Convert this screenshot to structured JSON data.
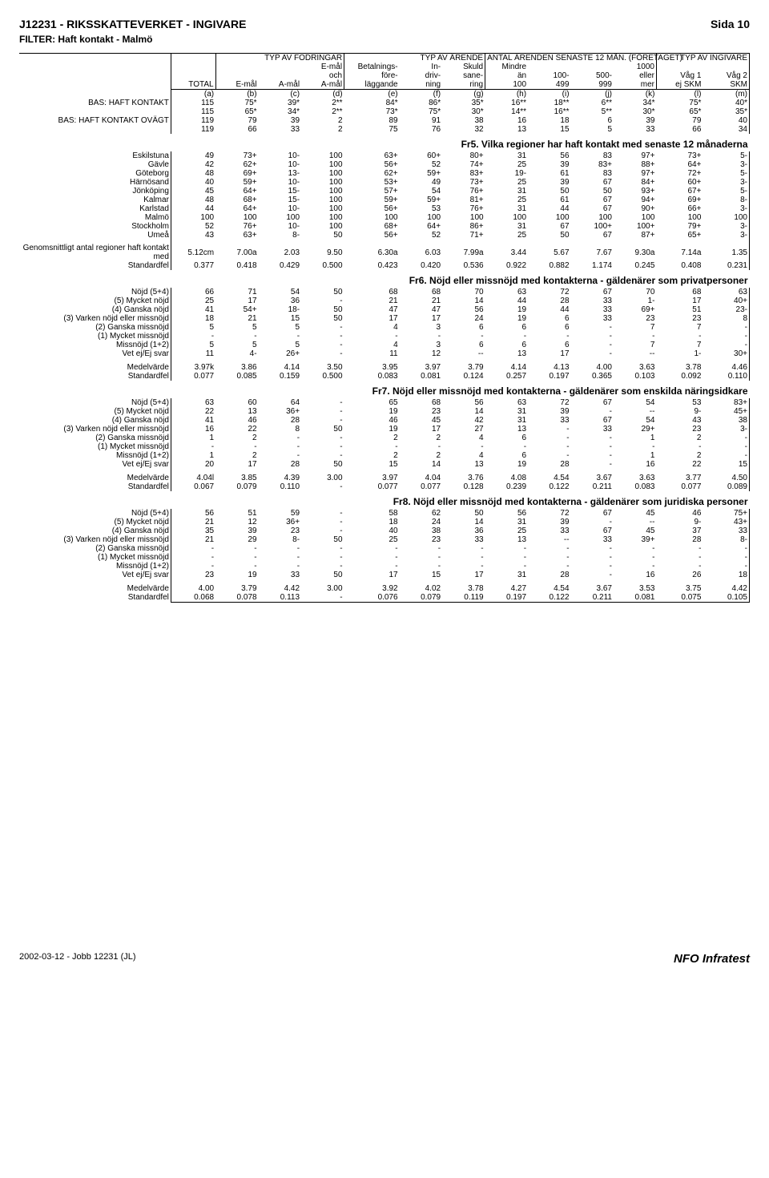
{
  "title": "J12231 - RIKSSKATTEVERKET - INGIVARE",
  "page_label": "Sida 10",
  "filter": "FILTER: Haft kontakt - Malmö",
  "footer_left": "2002-03-12 - Jobb 12231 (JL)",
  "footer_right": "NFO Infratest",
  "group_headers": [
    "TYP AV FODRINGAR",
    "TYP AV ÄRENDE",
    "ANTAL ÄRENDEN SENASTE 12 MÅN. (FÖRETAGET)",
    "TYP AV INGIVARE"
  ],
  "sub_headers_top": [
    "",
    "",
    "",
    "E-mål",
    "Betalnings-",
    "In-",
    "Skuld",
    "Mindre",
    "",
    "",
    "1000",
    "",
    ""
  ],
  "sub_headers_mid": [
    "",
    "",
    "",
    "och",
    "före-",
    "driv-",
    "sane-",
    "än",
    "100-",
    "500-",
    "eller",
    "Våg 1",
    "Våg 2"
  ],
  "sub_headers_bottom": [
    "TOTAL",
    "E-mål",
    "A-mål",
    "A-mål",
    "läggande",
    "ning",
    "ring",
    "100",
    "499",
    "999",
    "mer",
    "ej SKM",
    "SKM"
  ],
  "col_codes": [
    "(a)",
    "(b)",
    "(c)",
    "(d)",
    "(e)",
    "(f)",
    "(g)",
    "(h)",
    "(i)",
    "(j)",
    "(k)",
    "(l)",
    "(m)"
  ],
  "base_rows": [
    {
      "label": "BAS: HAFT KONTAKT",
      "cells": [
        "115",
        "75*",
        "39*",
        "2**",
        "84*",
        "86*",
        "35*",
        "16**",
        "18**",
        "6**",
        "34*",
        "75*",
        "40*"
      ]
    },
    {
      "label": "",
      "cells": [
        "115",
        "65*",
        "34*",
        "2**",
        "73*",
        "75*",
        "30*",
        "14**",
        "16**",
        "5**",
        "30*",
        "65*",
        "35*"
      ]
    },
    {
      "label": "BAS: HAFT KONTAKT OVÄGT",
      "cells": [
        "119",
        "79",
        "39",
        "2",
        "89",
        "91",
        "38",
        "16",
        "18",
        "6",
        "39",
        "79",
        "40"
      ]
    },
    {
      "label": "",
      "cells": [
        "119",
        "66",
        "33",
        "2",
        "75",
        "76",
        "32",
        "13",
        "15",
        "5",
        "33",
        "66",
        "34"
      ]
    }
  ],
  "fr5": {
    "title": "Fr5. Vilka regioner har haft kontakt med senaste 12 månaderna",
    "rows": [
      {
        "label": "Eskilstuna",
        "cells": [
          "49",
          "73+",
          "10-",
          "100",
          "63+",
          "60+",
          "80+",
          "31",
          "56",
          "83",
          "97+",
          "73+",
          "5-"
        ]
      },
      {
        "label": "Gävle",
        "cells": [
          "42",
          "62+",
          "10-",
          "100",
          "56+",
          "52",
          "74+",
          "25",
          "39",
          "83+",
          "88+",
          "64+",
          "3-"
        ]
      },
      {
        "label": "Göteborg",
        "cells": [
          "48",
          "69+",
          "13-",
          "100",
          "62+",
          "59+",
          "83+",
          "19-",
          "61",
          "83",
          "97+",
          "72+",
          "5-"
        ]
      },
      {
        "label": "Härnösand",
        "cells": [
          "40",
          "59+",
          "10-",
          "100",
          "53+",
          "49",
          "73+",
          "25",
          "39",
          "67",
          "84+",
          "60+",
          "3-"
        ]
      },
      {
        "label": "Jönköping",
        "cells": [
          "45",
          "64+",
          "15-",
          "100",
          "57+",
          "54",
          "76+",
          "31",
          "50",
          "50",
          "93+",
          "67+",
          "5-"
        ]
      },
      {
        "label": "Kalmar",
        "cells": [
          "48",
          "68+",
          "15-",
          "100",
          "59+",
          "59+",
          "81+",
          "25",
          "61",
          "67",
          "94+",
          "69+",
          "8-"
        ]
      },
      {
        "label": "Karlstad",
        "cells": [
          "44",
          "64+",
          "10-",
          "100",
          "56+",
          "53",
          "76+",
          "31",
          "44",
          "67",
          "90+",
          "66+",
          "3-"
        ]
      },
      {
        "label": "Malmö",
        "cells": [
          "100",
          "100",
          "100",
          "100",
          "100",
          "100",
          "100",
          "100",
          "100",
          "100",
          "100",
          "100",
          "100"
        ]
      },
      {
        "label": "Stockholm",
        "cells": [
          "52",
          "76+",
          "10-",
          "100",
          "68+",
          "64+",
          "86+",
          "31",
          "67",
          "100+",
          "100+",
          "79+",
          "3-"
        ]
      },
      {
        "label": "Umeå",
        "cells": [
          "43",
          "63+",
          "8-",
          "50",
          "56+",
          "52",
          "71+",
          "25",
          "50",
          "67",
          "87+",
          "65+",
          "3-"
        ]
      }
    ],
    "summary": [
      {
        "label": "Genomsnittligt antal regioner haft kontakt med",
        "cells": [
          "5.12cm",
          "7.00a",
          "2.03",
          "9.50",
          "6.30a",
          "6.03",
          "7.99a",
          "3.44",
          "5.67",
          "7.67",
          "9.30a",
          "7.14a",
          "1.35"
        ]
      },
      {
        "label": "Standardfel",
        "cells": [
          "0.377",
          "0.418",
          "0.429",
          "0.500",
          "0.423",
          "0.420",
          "0.536",
          "0.922",
          "0.882",
          "1.174",
          "0.245",
          "0.408",
          "0.231"
        ]
      }
    ]
  },
  "fr6": {
    "title": "Fr6. Nöjd eller missnöjd med kontakterna - gäldenärer som privatpersoner",
    "rows": [
      {
        "label": "Nöjd (5+4)",
        "cells": [
          "66",
          "71",
          "54",
          "50",
          "68",
          "68",
          "70",
          "63",
          "72",
          "67",
          "70",
          "68",
          "63"
        ]
      },
      {
        "label": "(5) Mycket nöjd",
        "cells": [
          "25",
          "17",
          "36",
          "-",
          "21",
          "21",
          "14",
          "44",
          "28",
          "33",
          "1-",
          "17",
          "40+"
        ]
      },
      {
        "label": "(4) Ganska nöjd",
        "cells": [
          "41",
          "54+",
          "18-",
          "50",
          "47",
          "47",
          "56",
          "19",
          "44",
          "33",
          "69+",
          "51",
          "23-"
        ]
      },
      {
        "label": "(3) Varken nöjd eller missnöjd",
        "cells": [
          "18",
          "21",
          "15",
          "50",
          "17",
          "17",
          "24",
          "19",
          "6",
          "33",
          "23",
          "23",
          "8"
        ]
      },
      {
        "label": "(2) Ganska missnöjd",
        "cells": [
          "5",
          "5",
          "5",
          "-",
          "4",
          "3",
          "6",
          "6",
          "6",
          "-",
          "7",
          "7",
          "-"
        ]
      },
      {
        "label": "(1) Mycket missnöjd",
        "cells": [
          "-",
          "-",
          "-",
          "-",
          "-",
          "-",
          "-",
          "-",
          "-",
          "-",
          "-",
          "-",
          "-"
        ]
      },
      {
        "label": "Missnöjd (1+2)",
        "cells": [
          "5",
          "5",
          "5",
          "-",
          "4",
          "3",
          "6",
          "6",
          "6",
          "-",
          "7",
          "7",
          "-"
        ]
      },
      {
        "label": "Vet ej/Ej svar",
        "cells": [
          "11",
          "4-",
          "26+",
          "-",
          "11",
          "12",
          "--",
          "13",
          "17",
          "-",
          "--",
          "1-",
          "30+"
        ]
      }
    ],
    "summary": [
      {
        "label": "Medelvärde",
        "cells": [
          "3.97k",
          "3.86",
          "4.14",
          "3.50",
          "3.95",
          "3.97",
          "3.79",
          "4.14",
          "4.13",
          "4.00",
          "3.63",
          "3.78",
          "4.46"
        ]
      },
      {
        "label": "Standardfel",
        "cells": [
          "0.077",
          "0.085",
          "0.159",
          "0.500",
          "0.083",
          "0.081",
          "0.124",
          "0.257",
          "0.197",
          "0.365",
          "0.103",
          "0.092",
          "0.110"
        ]
      }
    ]
  },
  "fr7": {
    "title": "Fr7. Nöjd eller missnöjd med kontakterna - gäldenärer som enskilda näringsidkare",
    "rows": [
      {
        "label": "Nöjd (5+4)",
        "cells": [
          "63",
          "60",
          "64",
          "-",
          "65",
          "68",
          "56",
          "63",
          "72",
          "67",
          "54",
          "53",
          "83+"
        ]
      },
      {
        "label": "(5) Mycket nöjd",
        "cells": [
          "22",
          "13",
          "36+",
          "-",
          "19",
          "23",
          "14",
          "31",
          "39",
          "-",
          "--",
          "9-",
          "45+"
        ]
      },
      {
        "label": "(4) Ganska nöjd",
        "cells": [
          "41",
          "46",
          "28",
          "-",
          "46",
          "45",
          "42",
          "31",
          "33",
          "67",
          "54",
          "43",
          "38"
        ]
      },
      {
        "label": "(3) Varken nöjd eller missnöjd",
        "cells": [
          "16",
          "22",
          "8",
          "50",
          "19",
          "17",
          "27",
          "13",
          "-",
          "33",
          "29+",
          "23",
          "3-"
        ]
      },
      {
        "label": "(2) Ganska missnöjd",
        "cells": [
          "1",
          "2",
          "-",
          "-",
          "2",
          "2",
          "4",
          "6",
          "-",
          "-",
          "1",
          "2",
          "-"
        ]
      },
      {
        "label": "(1) Mycket missnöjd",
        "cells": [
          "-",
          "-",
          "-",
          "-",
          "-",
          "-",
          "-",
          "-",
          "-",
          "-",
          "-",
          "-",
          "-"
        ]
      },
      {
        "label": "Missnöjd (1+2)",
        "cells": [
          "1",
          "2",
          "-",
          "-",
          "2",
          "2",
          "4",
          "6",
          "-",
          "-",
          "1",
          "2",
          "-"
        ]
      },
      {
        "label": "Vet ej/Ej svar",
        "cells": [
          "20",
          "17",
          "28",
          "50",
          "15",
          "14",
          "13",
          "19",
          "28",
          "-",
          "16",
          "22",
          "15"
        ]
      }
    ],
    "summary": [
      {
        "label": "Medelvärde",
        "cells": [
          "4.04l",
          "3.85",
          "4.39",
          "3.00",
          "3.97",
          "4.04",
          "3.76",
          "4.08",
          "4.54",
          "3.67",
          "3.63",
          "3.77",
          "4.50"
        ]
      },
      {
        "label": "Standardfel",
        "cells": [
          "0.067",
          "0.079",
          "0.110",
          "-",
          "0.077",
          "0.077",
          "0.128",
          "0.239",
          "0.122",
          "0.211",
          "0.083",
          "0.077",
          "0.089"
        ]
      }
    ]
  },
  "fr8": {
    "title": "Fr8. Nöjd eller missnöjd med kontakterna - gäldenärer som juridiska personer",
    "rows": [
      {
        "label": "Nöjd (5+4)",
        "cells": [
          "56",
          "51",
          "59",
          "-",
          "58",
          "62",
          "50",
          "56",
          "72",
          "67",
          "45",
          "46",
          "75+"
        ]
      },
      {
        "label": "(5) Mycket nöjd",
        "cells": [
          "21",
          "12",
          "36+",
          "-",
          "18",
          "24",
          "14",
          "31",
          "39",
          "-",
          "--",
          "9-",
          "43+"
        ]
      },
      {
        "label": "(4) Ganska nöjd",
        "cells": [
          "35",
          "39",
          "23",
          "-",
          "40",
          "38",
          "36",
          "25",
          "33",
          "67",
          "45",
          "37",
          "33"
        ]
      },
      {
        "label": "(3) Varken nöjd eller missnöjd",
        "cells": [
          "21",
          "29",
          "8-",
          "50",
          "25",
          "23",
          "33",
          "13",
          "--",
          "33",
          "39+",
          "28",
          "8-"
        ]
      },
      {
        "label": "(2) Ganska missnöjd",
        "cells": [
          "-",
          "-",
          "-",
          "-",
          "-",
          "-",
          "-",
          "-",
          "-",
          "-",
          "-",
          "-",
          "-"
        ]
      },
      {
        "label": "(1) Mycket missnöjd",
        "cells": [
          "-",
          "-",
          "-",
          "-",
          "-",
          "-",
          "-",
          "-",
          "-",
          "-",
          "-",
          "-",
          "-"
        ]
      },
      {
        "label": "Missnöjd (1+2)",
        "cells": [
          "-",
          "-",
          "-",
          "-",
          "-",
          "-",
          "-",
          "-",
          "-",
          "-",
          "-",
          "-",
          "-"
        ]
      },
      {
        "label": "Vet ej/Ej svar",
        "cells": [
          "23",
          "19",
          "33",
          "50",
          "17",
          "15",
          "17",
          "31",
          "28",
          "-",
          "16",
          "26",
          "18"
        ]
      }
    ],
    "summary": [
      {
        "label": "Medelvärde",
        "cells": [
          "4.00",
          "3.79",
          "4.42",
          "3.00",
          "3.92",
          "4.02",
          "3.78",
          "4.27",
          "4.54",
          "3.67",
          "3.53",
          "3.75",
          "4.42"
        ]
      },
      {
        "label": "Standardfel",
        "cells": [
          "0.068",
          "0.078",
          "0.113",
          "-",
          "0.076",
          "0.079",
          "0.119",
          "0.197",
          "0.122",
          "0.211",
          "0.081",
          "0.075",
          "0.105"
        ]
      }
    ]
  }
}
